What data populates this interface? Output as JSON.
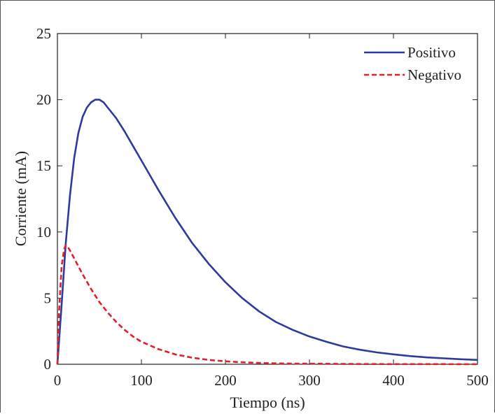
{
  "chart_data": {
    "type": "line",
    "xlabel": "Tiempo (ns)",
    "ylabel": "Corriente (mA)",
    "xlim": [
      0,
      500
    ],
    "ylim": [
      0,
      25
    ],
    "xticks": [
      0,
      100,
      200,
      300,
      400,
      500
    ],
    "yticks": [
      0,
      5,
      10,
      15,
      20,
      25
    ],
    "grid": false,
    "legend_position": "top-right",
    "series": [
      {
        "name": "Positivo",
        "color": "#2e3a9c",
        "style": "solid",
        "x": [
          0,
          5,
          10,
          15,
          20,
          25,
          30,
          35,
          40,
          45,
          50,
          55,
          60,
          70,
          80,
          90,
          100,
          110,
          120,
          140,
          160,
          180,
          200,
          220,
          240,
          260,
          280,
          300,
          320,
          340,
          360,
          380,
          400,
          420,
          440,
          460,
          480,
          500
        ],
        "y": [
          0,
          4.5,
          9.2,
          12.8,
          15.6,
          17.5,
          18.7,
          19.4,
          19.8,
          20.0,
          20.0,
          19.8,
          19.4,
          18.6,
          17.6,
          16.5,
          15.4,
          14.3,
          13.2,
          11.1,
          9.2,
          7.6,
          6.2,
          5.0,
          4.0,
          3.2,
          2.6,
          2.1,
          1.7,
          1.35,
          1.1,
          0.9,
          0.75,
          0.62,
          0.52,
          0.45,
          0.38,
          0.33
        ]
      },
      {
        "name": "Negativo",
        "color": "#e0202a",
        "style": "dashed",
        "x": [
          0,
          2,
          5,
          8,
          10,
          12,
          15,
          20,
          25,
          30,
          40,
          50,
          60,
          70,
          80,
          90,
          100,
          120,
          140,
          160,
          180,
          200,
          220,
          240,
          260,
          280,
          300,
          350,
          400,
          450,
          500
        ],
        "y": [
          0,
          4.0,
          7.4,
          8.7,
          9.0,
          8.9,
          8.6,
          8.0,
          7.4,
          6.8,
          5.7,
          4.7,
          3.9,
          3.2,
          2.6,
          2.1,
          1.7,
          1.15,
          0.75,
          0.5,
          0.33,
          0.22,
          0.15,
          0.1,
          0.07,
          0.05,
          0.04,
          0.02,
          0.01,
          0.01,
          0.0
        ]
      }
    ]
  }
}
